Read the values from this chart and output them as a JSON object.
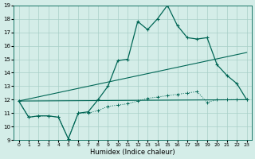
{
  "xlabel": "Humidex (Indice chaleur)",
  "xlim": [
    -0.5,
    23.5
  ],
  "ylim": [
    9,
    19
  ],
  "xticks": [
    0,
    1,
    2,
    3,
    4,
    5,
    6,
    7,
    8,
    9,
    10,
    11,
    12,
    13,
    14,
    15,
    16,
    17,
    18,
    19,
    20,
    21,
    22,
    23
  ],
  "yticks": [
    9,
    10,
    11,
    12,
    13,
    14,
    15,
    16,
    17,
    18,
    19
  ],
  "background_color": "#d4ede8",
  "grid_color": "#a8cfc8",
  "line_color": "#006655",
  "line1_x": [
    0,
    1,
    2,
    3,
    4,
    5,
    6,
    7,
    8,
    9,
    10,
    11,
    12,
    13,
    14,
    15,
    16,
    17,
    18,
    19,
    20,
    21,
    22,
    23
  ],
  "line1_y": [
    11.9,
    10.7,
    10.8,
    10.8,
    10.7,
    9.1,
    11.0,
    11.1,
    12.0,
    13.0,
    14.9,
    15.0,
    17.8,
    17.2,
    18.0,
    19.0,
    17.5,
    16.6,
    16.5,
    16.6,
    14.6,
    13.8,
    13.2,
    12.0
  ],
  "line2_x": [
    0,
    23
  ],
  "line2_y": [
    11.9,
    15.5
  ],
  "line3_x": [
    0,
    23
  ],
  "line3_y": [
    11.9,
    12.0
  ],
  "line4_x": [
    0,
    1,
    2,
    3,
    4,
    5,
    6,
    7,
    8,
    9,
    10,
    11,
    12,
    13,
    14,
    15,
    16,
    17,
    18,
    19,
    20,
    21,
    22,
    23
  ],
  "line4_y": [
    11.9,
    10.7,
    10.8,
    10.8,
    10.7,
    9.1,
    11.0,
    11.0,
    11.2,
    11.5,
    11.6,
    11.7,
    11.9,
    12.1,
    12.2,
    12.3,
    12.4,
    12.5,
    12.6,
    11.8,
    12.0,
    12.0,
    12.0,
    12.0
  ]
}
